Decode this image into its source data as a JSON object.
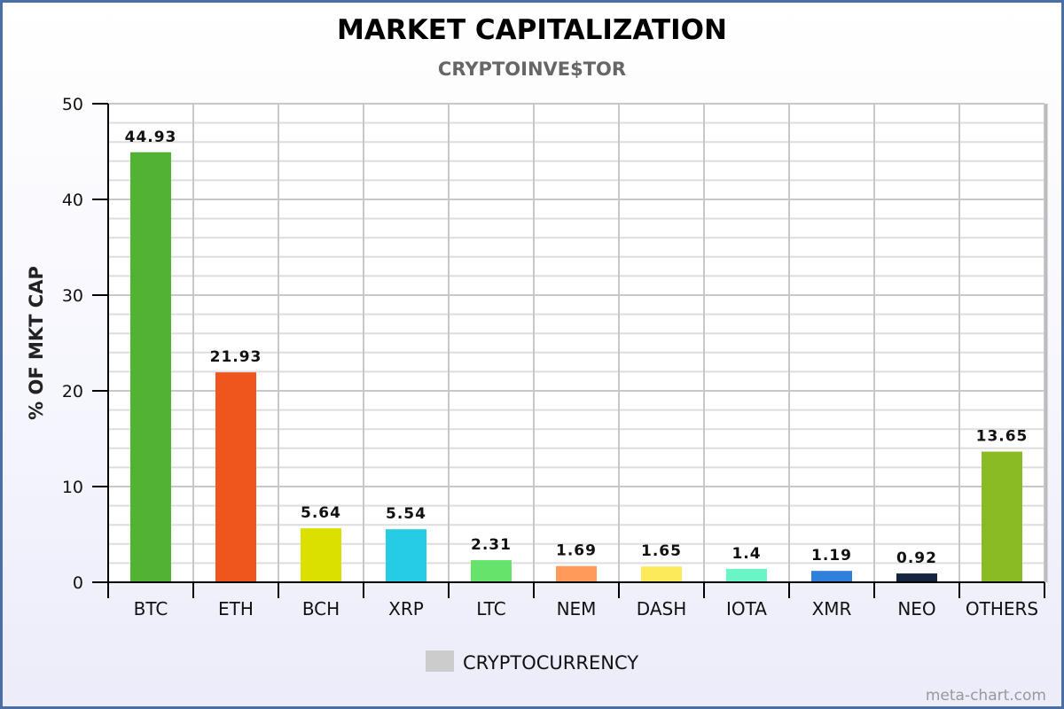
{
  "chart_data": {
    "type": "bar",
    "title": "MARKET CAPITALIZATION",
    "subtitle": "CRYPTOINVE$TOR",
    "xlabel": "",
    "ylabel": "% OF MKT CAP",
    "ylim": [
      0,
      50
    ],
    "yticks": [
      0,
      10,
      20,
      30,
      40,
      50
    ],
    "grid": true,
    "categories": [
      "BTC",
      "ETH",
      "BCH",
      "XRP",
      "LTC",
      "NEM",
      "DASH",
      "IOTA",
      "XMR",
      "NEO",
      "OTHERS"
    ],
    "values": [
      44.93,
      21.93,
      5.64,
      5.54,
      2.31,
      1.69,
      1.65,
      1.4,
      1.19,
      0.92,
      13.65
    ],
    "data_labels": [
      "44.93",
      "21.93",
      "5.64",
      "5.54",
      "2.31",
      "1.69",
      "1.65",
      "1.4",
      "1.19",
      "0.92",
      "13.65"
    ],
    "colors": [
      "#52b234",
      "#ee561e",
      "#dce000",
      "#26cbe4",
      "#66e36a",
      "#ff9a5a",
      "#fcea5a",
      "#6af5c7",
      "#2f80d8",
      "#14263f",
      "#8bbb24"
    ],
    "legend": {
      "label": "CRYPTOCURRENCY",
      "color": "#cccccc",
      "position": "bottom"
    }
  },
  "credit": "meta-chart.com"
}
